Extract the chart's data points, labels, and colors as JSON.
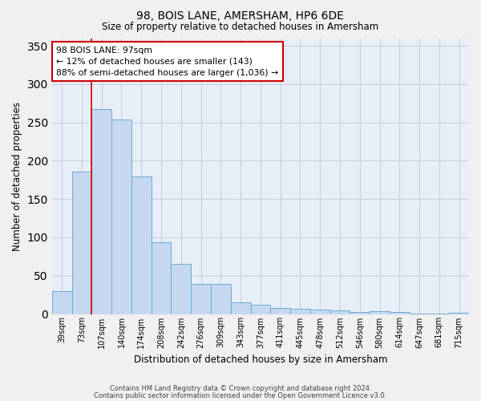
{
  "title1": "98, BOIS LANE, AMERSHAM, HP6 6DE",
  "title2": "Size of property relative to detached houses in Amersham",
  "xlabel": "Distribution of detached houses by size in Amersham",
  "ylabel": "Number of detached properties",
  "categories": [
    "39sqm",
    "73sqm",
    "107sqm",
    "140sqm",
    "174sqm",
    "208sqm",
    "242sqm",
    "276sqm",
    "309sqm",
    "343sqm",
    "377sqm",
    "411sqm",
    "445sqm",
    "478sqm",
    "512sqm",
    "546sqm",
    "580sqm",
    "614sqm",
    "647sqm",
    "681sqm",
    "715sqm"
  ],
  "values": [
    30,
    186,
    267,
    254,
    179,
    94,
    65,
    39,
    39,
    15,
    12,
    8,
    7,
    6,
    5,
    3,
    4,
    3,
    1,
    1,
    2
  ],
  "bar_color": "#c5d8f0",
  "bar_edge_color": "#6aaad4",
  "background_color": "#e8eef8",
  "grid_color": "#d0d8e8",
  "red_line_x": 1.5,
  "annotation_text": "98 BOIS LANE: 97sqm\n← 12% of detached houses are smaller (143)\n88% of semi-detached houses are larger (1,036) →",
  "annotation_box_color": "#ffffff",
  "annotation_box_edge": "#cc0000",
  "ylim": [
    0,
    360
  ],
  "yticks": [
    0,
    50,
    100,
    150,
    200,
    250,
    300,
    350
  ],
  "footer1": "Contains HM Land Registry data © Crown copyright and database right 2024.",
  "footer2": "Contains public sector information licensed under the Open Government Licence v3.0."
}
